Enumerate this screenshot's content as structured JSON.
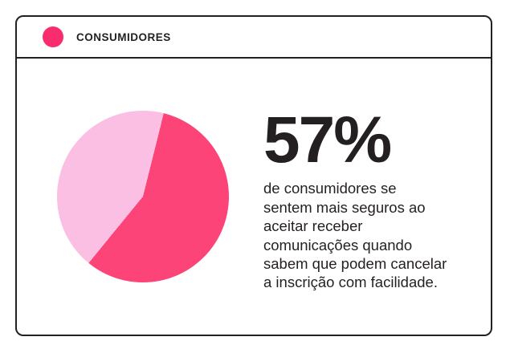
{
  "header": {
    "label": "CONSUMIDORES",
    "dot_color": "#f92d6d"
  },
  "stat": {
    "value": "57%",
    "description": "de consumidores se\nsentem mais seguros ao\naceitar receber\ncomunicações quando\nsabem que podem cancelar\na inscrição com facilidade."
  },
  "chart_data": {
    "type": "pie",
    "title": "CONSUMIDORES",
    "start_angle_deg": 14,
    "legend_position": "header-top-left",
    "slices": [
      {
        "label": "57%",
        "value": 57,
        "color": "#fc4479"
      },
      {
        "label": "",
        "value": 43,
        "color": "#fcbfe4"
      }
    ],
    "annotation": "57% de consumidores se sentem mais seguros ao aceitar receber comunicações quando sabem que podem cancelar a inscrição com facilidade."
  }
}
